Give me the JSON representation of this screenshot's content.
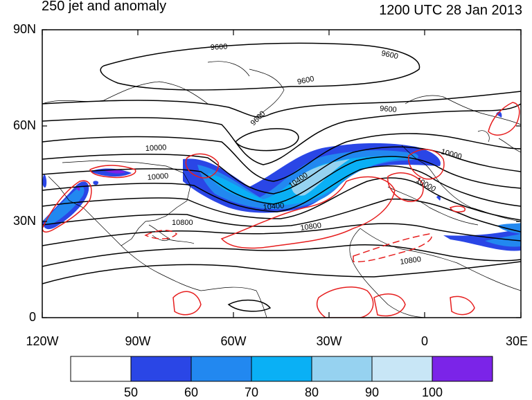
{
  "title": "250 jet and anomaly",
  "datetime": "1200 UTC 28 Jan 2013",
  "lat_labels": [
    "90N",
    "60N",
    "30N",
    "0"
  ],
  "lon_labels": [
    "120W",
    "90W",
    "60W",
    "30W",
    "0",
    "30E"
  ],
  "contour_labels": {
    "c1": "9600",
    "c2": "9600",
    "c3": "9600",
    "c4": "9600",
    "c5": "9600",
    "c6": "10000",
    "c7": "10000",
    "c8": "10400",
    "c9": "10800",
    "c10": "10800",
    "c11": "10800",
    "c12": "10000",
    "c13": "10000",
    "c14": "10400"
  },
  "colorbar": {
    "labels": [
      "50",
      "60",
      "70",
      "80",
      "90",
      "100"
    ],
    "colors": [
      "#ffffff",
      "#2a46e6",
      "#2288f0",
      "#0ab0f5",
      "#96d2f0",
      "#c8e6f6",
      "#7b24e8"
    ]
  },
  "colors": {
    "contour": "#000000",
    "anomaly": "#e61e1e",
    "coast": "#000000"
  }
}
